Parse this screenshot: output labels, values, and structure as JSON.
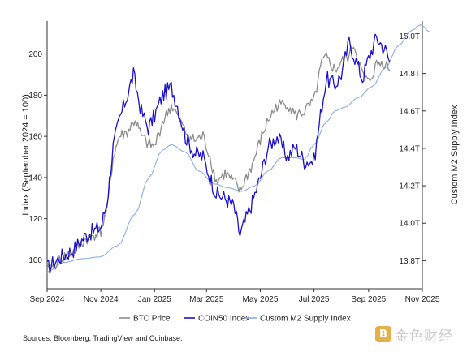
{
  "chart_data": {
    "type": "line",
    "title": "",
    "xlabel": "",
    "ylabel": "Index (September 2024 = 100)",
    "ylabel_right": "Custom M2 Supply Index",
    "x_ticks": [
      "Sep 2024",
      "Nov 2024",
      "Jan 2025",
      "Mar 2025",
      "May 2025",
      "Jul 2025",
      "Sep 2025",
      "Nov 2025"
    ],
    "ylim_left": [
      86,
      216
    ],
    "yticks_left": [
      100,
      120,
      140,
      160,
      180,
      200
    ],
    "ylim_right": [
      13.65,
      15.08
    ],
    "yticks_right": [
      13.8,
      14.0,
      14.2,
      14.4,
      14.6,
      14.8,
      15.0
    ],
    "ytick_right_labels": [
      "13.8T",
      "14.0T",
      "14.2T",
      "14.4T",
      "14.6T",
      "14.8T",
      "15.0T"
    ],
    "legend_position": "bottom-center",
    "grid": false,
    "series": [
      {
        "name": "BTC Price",
        "color": "#8c8c8c",
        "axis": "left",
        "x": [
          "2024-09-01",
          "2024-09-15",
          "2024-10-01",
          "2024-10-15",
          "2024-11-01",
          "2024-11-08",
          "2024-11-15",
          "2024-11-22",
          "2024-12-01",
          "2024-12-10",
          "2024-12-17",
          "2024-12-25",
          "2025-01-01",
          "2025-01-10",
          "2025-01-20",
          "2025-01-27",
          "2025-02-05",
          "2025-02-15",
          "2025-02-25",
          "2025-03-05",
          "2025-03-12",
          "2025-03-22",
          "2025-04-01",
          "2025-04-08",
          "2025-04-15",
          "2025-04-22",
          "2025-05-01",
          "2025-05-10",
          "2025-05-20",
          "2025-06-01",
          "2025-06-10",
          "2025-06-20",
          "2025-07-01",
          "2025-07-10",
          "2025-07-15",
          "2025-07-25",
          "2025-08-01",
          "2025-08-10",
          "2025-08-15",
          "2025-08-25",
          "2025-09-01",
          "2025-09-10",
          "2025-09-20",
          "2025-09-25"
        ],
        "values": [
          94,
          100,
          104,
          110,
          114,
          124,
          150,
          160,
          162,
          168,
          160,
          156,
          155,
          167,
          175,
          170,
          162,
          158,
          160,
          150,
          138,
          142,
          138,
          133,
          140,
          146,
          158,
          168,
          175,
          176,
          170,
          172,
          177,
          196,
          198,
          192,
          196,
          199,
          205,
          190,
          186,
          195,
          196,
          192
        ]
      },
      {
        "name": "COIN50 Index",
        "color": "#1c10c8",
        "axis": "left",
        "x": [
          "2024-09-01",
          "2024-09-15",
          "2024-10-01",
          "2024-10-15",
          "2024-11-01",
          "2024-11-08",
          "2024-11-15",
          "2024-11-22",
          "2024-12-01",
          "2024-12-08",
          "2024-12-17",
          "2024-12-25",
          "2025-01-01",
          "2025-01-10",
          "2025-01-20",
          "2025-01-27",
          "2025-02-05",
          "2025-02-15",
          "2025-02-25",
          "2025-03-05",
          "2025-03-12",
          "2025-03-22",
          "2025-04-01",
          "2025-04-08",
          "2025-04-15",
          "2025-04-22",
          "2025-05-01",
          "2025-05-10",
          "2025-05-20",
          "2025-06-01",
          "2025-06-10",
          "2025-06-20",
          "2025-07-01",
          "2025-07-10",
          "2025-07-15",
          "2025-07-25",
          "2025-08-01",
          "2025-08-10",
          "2025-08-15",
          "2025-08-25",
          "2025-09-01",
          "2025-09-10",
          "2025-09-20",
          "2025-09-25"
        ],
        "values": [
          96,
          101,
          105,
          112,
          116,
          128,
          155,
          168,
          180,
          190,
          172,
          164,
          170,
          180,
          184,
          175,
          160,
          152,
          150,
          140,
          132,
          130,
          126,
          112,
          120,
          128,
          140,
          155,
          160,
          150,
          155,
          148,
          148,
          175,
          188,
          185,
          190,
          206,
          200,
          188,
          198,
          208,
          202,
          196
        ]
      },
      {
        "name": "Custom M2 Supply Index",
        "color": "#8aaee6",
        "axis": "right",
        "x": [
          "2024-09-01",
          "2024-09-20",
          "2024-10-10",
          "2024-10-31",
          "2024-11-20",
          "2024-12-10",
          "2024-12-25",
          "2025-01-10",
          "2025-01-20",
          "2025-02-05",
          "2025-02-20",
          "2025-03-10",
          "2025-03-25",
          "2025-04-10",
          "2025-04-25",
          "2025-05-10",
          "2025-05-25",
          "2025-06-10",
          "2025-06-20",
          "2025-07-01",
          "2025-07-15",
          "2025-07-25",
          "2025-08-05",
          "2025-08-20",
          "2025-09-05",
          "2025-09-20",
          "2025-10-05",
          "2025-10-20",
          "2025-10-30",
          "2025-11-10"
        ],
        "values": [
          13.74,
          13.79,
          13.81,
          13.82,
          13.88,
          14.05,
          14.24,
          14.39,
          14.42,
          14.38,
          14.28,
          14.21,
          14.19,
          14.17,
          14.2,
          14.28,
          14.35,
          14.35,
          14.34,
          14.42,
          14.54,
          14.6,
          14.62,
          14.67,
          14.73,
          14.83,
          14.95,
          15.03,
          15.06,
          15.02
        ]
      }
    ]
  },
  "source_note": "Sources: Bloomberg, TradingView and Coinbase.",
  "watermark": {
    "badge": "B",
    "text": "金色财经"
  }
}
